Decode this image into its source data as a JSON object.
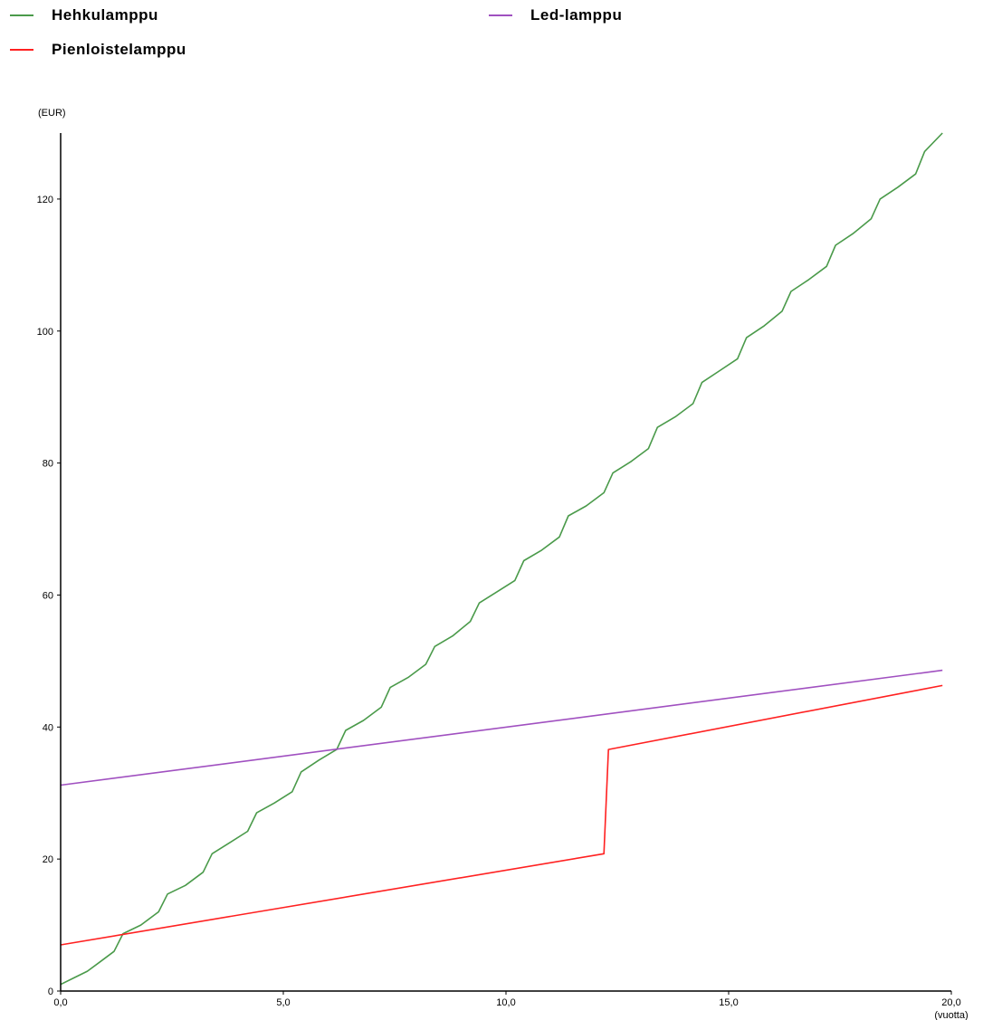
{
  "legend": [
    {
      "label": "Hehkulamppu",
      "color": "#4a9a4a"
    },
    {
      "label": "Led-lamppu",
      "color": "#a050c0"
    },
    {
      "label": "Pienloistelamppu",
      "color": "#ff2020"
    }
  ],
  "chart_data": {
    "type": "line",
    "ylabel": "(EUR)",
    "xlabel": "(vuotta)",
    "xlim": [
      0,
      20
    ],
    "ylim": [
      0,
      130
    ],
    "xticks": [
      0,
      5,
      10,
      15,
      20
    ],
    "xtick_labels": [
      "0,0",
      "5,0",
      "10,0",
      "15,0",
      "20,0"
    ],
    "yticks": [
      0,
      20,
      40,
      60,
      80,
      100,
      120
    ],
    "ytick_labels": [
      "0",
      "20",
      "40",
      "60",
      "80",
      "100",
      "120"
    ],
    "grid": false,
    "legend_position": "top",
    "series": [
      {
        "name": "Hehkulamppu",
        "color": "#4a9a4a",
        "x": [
          0,
          0.3,
          0.6,
          0.9,
          1.2,
          1.4,
          1.8,
          2.2,
          2.4,
          2.8,
          3.2,
          3.4,
          3.8,
          4.2,
          4.4,
          4.8,
          5.2,
          5.4,
          5.8,
          6.2,
          6.4,
          6.8,
          7.2,
          7.4,
          7.8,
          8.2,
          8.4,
          8.8,
          9.2,
          9.4,
          9.8,
          10.2,
          10.4,
          10.8,
          11.2,
          11.4,
          11.8,
          12.2,
          12.4,
          12.8,
          13.2,
          13.4,
          13.8,
          14.2,
          14.4,
          14.8,
          15.2,
          15.4,
          15.8,
          16.2,
          16.4,
          16.8,
          17.2,
          17.4,
          17.8,
          18.2,
          18.4,
          18.8,
          19.2,
          19.4,
          19.8
        ],
        "values": [
          1,
          2,
          3,
          4.5,
          6,
          8.7,
          10,
          12,
          14.7,
          16,
          18,
          20.8,
          22.5,
          24.2,
          27,
          28.5,
          30.2,
          33.2,
          35,
          36.6,
          39.5,
          41,
          43,
          46,
          47.5,
          49.5,
          52.2,
          53.8,
          56,
          58.8,
          60.5,
          62.2,
          65.2,
          66.8,
          68.8,
          72,
          73.5,
          75.5,
          78.5,
          80.2,
          82.2,
          85.4,
          87,
          89,
          92.2,
          94,
          95.8,
          99,
          100.8,
          103,
          106,
          107.8,
          109.8,
          113,
          114.8,
          117,
          120,
          121.8,
          123.8,
          127.2,
          130
        ]
      },
      {
        "name": "Led-lamppu",
        "color": "#a050c0",
        "x": [
          0,
          19.8
        ],
        "values": [
          31.2,
          48.6
        ]
      },
      {
        "name": "Pienloistelamppu",
        "color": "#ff2020",
        "x": [
          0,
          12.2,
          12.3,
          19.8
        ],
        "values": [
          7,
          20.8,
          36.6,
          46.3
        ]
      }
    ]
  }
}
